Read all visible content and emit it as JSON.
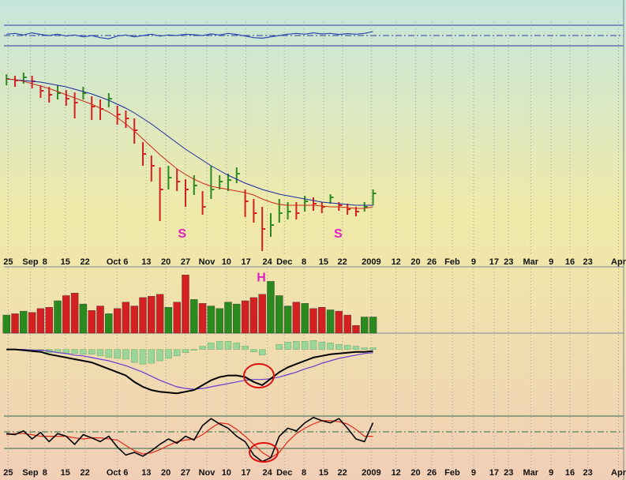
{
  "chart_data": [
    {
      "type": "line",
      "ylim": [
        0,
        100
      ],
      "series": [
        {
          "color": "#2a44b0",
          "values": [
            55,
            58,
            52,
            60,
            54,
            50,
            55,
            48,
            52,
            45,
            50,
            42,
            38,
            48,
            52,
            45,
            50,
            55,
            48,
            52,
            50,
            55,
            53,
            50,
            56,
            52,
            58,
            54,
            48,
            42,
            40,
            45,
            50,
            55,
            58,
            55,
            60,
            56,
            58,
            54,
            57,
            55,
            58,
            65
          ]
        }
      ]
    },
    {
      "type": "ohlc",
      "xlim": [
        -0.3,
        72.4
      ],
      "xticks": [
        {
          "value": 0.2,
          "label": "25"
        },
        {
          "value": 2.8,
          "label": "Sep"
        },
        {
          "value": 4.5,
          "label": "8"
        },
        {
          "value": 6.9,
          "label": "15"
        },
        {
          "value": 9.2,
          "label": "22"
        },
        {
          "value": 13,
          "label": "Oct 6"
        },
        {
          "value": 16.4,
          "label": "13"
        },
        {
          "value": 18.7,
          "label": "20"
        },
        {
          "value": 21,
          "label": "27"
        },
        {
          "value": 23.5,
          "label": "Nov"
        },
        {
          "value": 25.8,
          "label": "10"
        },
        {
          "value": 28.1,
          "label": "17"
        },
        {
          "value": 30.6,
          "label": "24"
        },
        {
          "value": 32.6,
          "label": "Dec"
        },
        {
          "value": 34.9,
          "label": "8"
        },
        {
          "value": 37.2,
          "label": "15"
        },
        {
          "value": 39.4,
          "label": "22"
        },
        {
          "value": 42.8,
          "label": "2009"
        },
        {
          "value": 45.7,
          "label": "12"
        },
        {
          "value": 48,
          "label": "20"
        },
        {
          "value": 49.9,
          "label": "26"
        },
        {
          "value": 52.3,
          "label": "Feb"
        },
        {
          "value": 54.8,
          "label": "9"
        },
        {
          "value": 57.2,
          "label": "17"
        },
        {
          "value": 58.9,
          "label": "23"
        },
        {
          "value": 61.5,
          "label": "Mar"
        },
        {
          "value": 63.9,
          "label": "9"
        },
        {
          "value": 66.1,
          "label": "16"
        },
        {
          "value": 68.2,
          "label": "23"
        },
        {
          "value": 71.8,
          "label": "Apr"
        }
      ],
      "ylim": [
        0,
        260
      ],
      "high": [
        228,
        226,
        230,
        226,
        214,
        212,
        214,
        208,
        205,
        212,
        200,
        196,
        204,
        188,
        182,
        172,
        142,
        125,
        110,
        112,
        108,
        95,
        100,
        80,
        112,
        100,
        102,
        110,
        82,
        70,
        60,
        52,
        70,
        66,
        66,
        74,
        72,
        66,
        76,
        66,
        64,
        60,
        66,
        82
      ],
      "low": [
        214,
        212,
        216,
        210,
        198,
        192,
        196,
        188,
        172,
        196,
        170,
        170,
        186,
        164,
        160,
        140,
        112,
        92,
        42,
        82,
        80,
        60,
        75,
        50,
        70,
        82,
        80,
        90,
        47,
        40,
        4,
        22,
        40,
        44,
        44,
        54,
        55,
        52,
        64,
        55,
        50,
        48,
        54,
        62
      ],
      "close": [
        222,
        220,
        224,
        219,
        207,
        202,
        204,
        197,
        192,
        204,
        187,
        184,
        197,
        177,
        172,
        157,
        127,
        112,
        82,
        97,
        92,
        82,
        87,
        60,
        82,
        92,
        94,
        102,
        67,
        52,
        32,
        37,
        52,
        54,
        52,
        67,
        64,
        60,
        72,
        62,
        57,
        54,
        60,
        77
      ],
      "up_color": "#2a8a1e",
      "down_color": "#d42020",
      "series": [
        {
          "color": "#1a2aa0",
          "values": [
            222,
            221,
            220,
            219,
            218,
            216,
            214,
            212,
            209,
            206,
            203,
            199,
            195,
            190,
            185,
            179,
            172,
            165,
            157,
            149,
            141,
            133,
            126,
            119,
            112,
            106,
            100,
            95,
            90,
            86,
            82,
            79,
            76,
            74,
            72,
            70,
            68,
            66,
            65,
            64,
            63,
            62,
            62,
            62
          ]
        },
        {
          "color": "#cc2a1a",
          "values": [
            222,
            221,
            219,
            216,
            213,
            210,
            206,
            202,
            198,
            194,
            190,
            185,
            180,
            173,
            165,
            156,
            146,
            136,
            126,
            117,
            108,
            101,
            95,
            90,
            86,
            84,
            82,
            80,
            78,
            75,
            70,
            66,
            63,
            62,
            62,
            62,
            62,
            61,
            60,
            60,
            59,
            58,
            58,
            60
          ]
        }
      ],
      "annotations": [
        {
          "text": "S",
          "x": 20.6,
          "y": 25,
          "color": "#e020c0"
        },
        {
          "text": "S",
          "x": 38.9,
          "y": 25,
          "color": "#e020c0"
        }
      ]
    },
    {
      "type": "bar",
      "ylim": [
        0,
        100
      ],
      "values": [
        28,
        30,
        34,
        32,
        38,
        40,
        50,
        58,
        62,
        45,
        35,
        42,
        30,
        38,
        48,
        42,
        55,
        57,
        60,
        40,
        48,
        90,
        52,
        46,
        42,
        38,
        48,
        45,
        50,
        55,
        60,
        80,
        58,
        42,
        48,
        46,
        38,
        40,
        36,
        34,
        28,
        12,
        25,
        25
      ],
      "up_color": "#2a8a1e",
      "down_color": "#d42020",
      "annotations": [
        {
          "text": "H",
          "x": 29.9,
          "y": 85,
          "color": "#e020c0"
        }
      ]
    },
    {
      "type": "macd",
      "ylim": [
        -80,
        20
      ],
      "histogram": {
        "color": "#9ad69a",
        "values": [
          0,
          0,
          -1,
          -1,
          -2,
          -4,
          -4,
          -5,
          -5,
          -6,
          -6,
          -8,
          -10,
          -11,
          -12,
          -16,
          -18,
          -17,
          -14,
          -11,
          -8,
          -4,
          -1,
          4,
          8,
          10,
          10,
          8,
          4,
          -3,
          -7,
          0,
          6,
          9,
          10,
          10,
          11,
          9,
          8,
          6,
          5,
          4,
          2,
          2
        ]
      },
      "series": [
        {
          "color": "#6a3ad0",
          "values": [
            0,
            0,
            0,
            -1,
            -1,
            -2,
            -4,
            -5,
            -7,
            -8,
            -10,
            -12,
            -14,
            -17,
            -20,
            -24,
            -28,
            -33,
            -38,
            -42,
            -46,
            -48,
            -49,
            -48,
            -46,
            -44,
            -42,
            -40,
            -38,
            -37,
            -37,
            -36,
            -34,
            -31,
            -28,
            -24,
            -21,
            -17,
            -14,
            -11,
            -9,
            -7,
            -5,
            -4
          ]
        },
        {
          "color": "#000000",
          "values": [
            0,
            0,
            -1,
            -2,
            -3,
            -6,
            -8,
            -10,
            -12,
            -14,
            -16,
            -20,
            -24,
            -28,
            -32,
            -40,
            -46,
            -50,
            -52,
            -53,
            -54,
            -52,
            -50,
            -44,
            -38,
            -34,
            -32,
            -32,
            -34,
            -40,
            -44,
            -36,
            -28,
            -22,
            -18,
            -14,
            -10,
            -8,
            -6,
            -5,
            -4,
            -3,
            -3,
            -2
          ]
        }
      ]
    },
    {
      "type": "line",
      "ylim": [
        0,
        100
      ],
      "xlim": [
        -0.3,
        72.4
      ],
      "xticks": [
        {
          "value": 0.2,
          "label": "25"
        },
        {
          "value": 2.8,
          "label": "Sep"
        },
        {
          "value": 4.5,
          "label": "8"
        },
        {
          "value": 6.9,
          "label": "15"
        },
        {
          "value": 9.2,
          "label": "22"
        },
        {
          "value": 13,
          "label": "Oct 6"
        },
        {
          "value": 16.4,
          "label": "13"
        },
        {
          "value": 18.7,
          "label": "20"
        },
        {
          "value": 21,
          "label": "27"
        },
        {
          "value": 23.5,
          "label": "Nov"
        },
        {
          "value": 25.8,
          "label": "10"
        },
        {
          "value": 28.1,
          "label": "17"
        },
        {
          "value": 30.6,
          "label": "24"
        },
        {
          "value": 32.6,
          "label": "Dec"
        },
        {
          "value": 34.9,
          "label": "8"
        },
        {
          "value": 37.2,
          "label": "15"
        },
        {
          "value": 39.4,
          "label": "22"
        },
        {
          "value": 42.8,
          "label": "2009"
        },
        {
          "value": 45.7,
          "label": "12"
        },
        {
          "value": 48,
          "label": "20"
        },
        {
          "value": 49.9,
          "label": "26"
        },
        {
          "value": 52.3,
          "label": "Feb"
        },
        {
          "value": 54.8,
          "label": "9"
        },
        {
          "value": 57.2,
          "label": "17"
        },
        {
          "value": 58.9,
          "label": "23"
        },
        {
          "value": 61.5,
          "label": "Mar"
        },
        {
          "value": 63.9,
          "label": "9"
        },
        {
          "value": 66.1,
          "label": "16"
        },
        {
          "value": 68.2,
          "label": "23"
        },
        {
          "value": 71.8,
          "label": "Apr"
        }
      ],
      "series": [
        {
          "color": "#e02a1a",
          "values": [
            58,
            60,
            60,
            58,
            55,
            55,
            55,
            55,
            52,
            50,
            52,
            52,
            50,
            48,
            38,
            28,
            22,
            24,
            30,
            38,
            45,
            48,
            50,
            58,
            70,
            80,
            78,
            68,
            55,
            40,
            25,
            15,
            25,
            45,
            60,
            70,
            78,
            84,
            84,
            82,
            78,
            68,
            55,
            55
          ]
        },
        {
          "color": "#000000",
          "values": [
            60,
            58,
            65,
            50,
            62,
            45,
            60,
            55,
            40,
            58,
            52,
            45,
            55,
            35,
            20,
            25,
            18,
            28,
            40,
            50,
            42,
            55,
            48,
            75,
            88,
            78,
            70,
            55,
            45,
            20,
            8,
            15,
            55,
            70,
            65,
            80,
            90,
            84,
            80,
            88,
            70,
            50,
            45,
            80
          ]
        }
      ]
    }
  ]
}
